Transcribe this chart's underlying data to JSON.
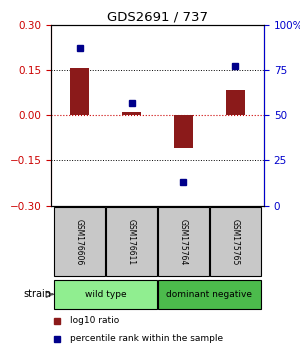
{
  "title": "GDS2691 / 737",
  "samples": [
    "GSM176606",
    "GSM176611",
    "GSM175764",
    "GSM175765"
  ],
  "log10_ratio": [
    0.155,
    0.012,
    -0.11,
    0.085
  ],
  "percentile_rank": [
    87,
    57,
    13,
    77
  ],
  "groups": [
    {
      "name": "wild type",
      "color": "#90ee90",
      "samples": [
        0,
        1
      ]
    },
    {
      "name": "dominant negative",
      "color": "#4cbb4c",
      "samples": [
        2,
        3
      ]
    }
  ],
  "ylim_left": [
    -0.3,
    0.3
  ],
  "ylim_right": [
    0,
    100
  ],
  "yticks_left": [
    -0.3,
    -0.15,
    0,
    0.15,
    0.3
  ],
  "yticks_right": [
    0,
    25,
    50,
    75,
    100
  ],
  "ytick_labels_right": [
    "0",
    "25",
    "50",
    "75",
    "100%"
  ],
  "bar_color": "#8b1a1a",
  "dot_color": "#00008b",
  "bar_width": 0.35,
  "left_axis_color": "#cc0000",
  "right_axis_color": "#0000cc",
  "legend_ratio_label": "log10 ratio",
  "legend_pct_label": "percentile rank within the sample",
  "strain_label": "strain",
  "sample_box_color": "#c8c8c8",
  "background_color": "#ffffff",
  "zero_line_color": "#cc0000"
}
